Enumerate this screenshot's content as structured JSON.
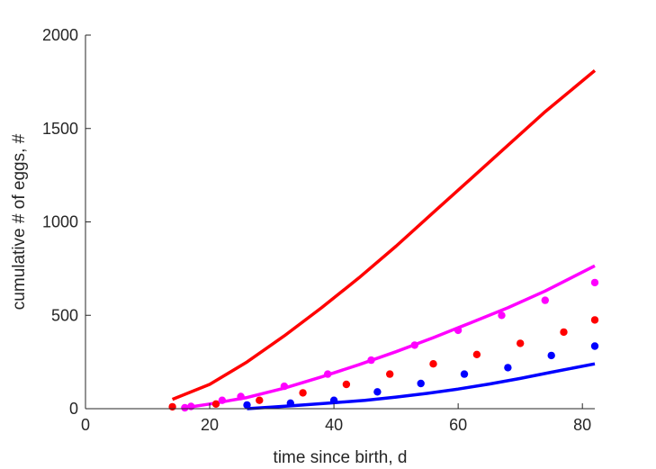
{
  "chart_data": {
    "type": "line",
    "title": "",
    "xlabel": "time since birth, d",
    "ylabel": "cumulative # of eggs, #",
    "xlim": [
      0,
      82
    ],
    "ylim": [
      0,
      2000
    ],
    "xticks": [
      0,
      20,
      40,
      60,
      80
    ],
    "yticks": [
      0,
      500,
      1000,
      1500,
      2000
    ],
    "grid": false,
    "legend": "none",
    "series": [
      {
        "kind": "line",
        "color": "#ff0000",
        "x": [
          14,
          20,
          26,
          32,
          38,
          44,
          50,
          56,
          62,
          68,
          74,
          82
        ],
        "y": [
          50,
          130,
          250,
          390,
          540,
          700,
          870,
          1050,
          1230,
          1410,
          1590,
          1810
        ]
      },
      {
        "kind": "line",
        "color": "#ff00ff",
        "x": [
          16,
          20,
          26,
          32,
          38,
          44,
          50,
          56,
          62,
          68,
          74,
          82
        ],
        "y": [
          5,
          25,
          60,
          110,
          170,
          235,
          305,
          380,
          460,
          540,
          630,
          765
        ]
      },
      {
        "kind": "line",
        "color": "#0000ff",
        "x": [
          26,
          30,
          35,
          40,
          45,
          50,
          55,
          60,
          65,
          70,
          75,
          82
        ],
        "y": [
          0,
          8,
          20,
          32,
          45,
          62,
          82,
          105,
          132,
          162,
          195,
          240
        ]
      },
      {
        "kind": "scatter",
        "color": "#ff0000",
        "x": [
          14,
          21,
          28,
          35,
          42,
          49,
          56,
          63,
          70,
          77,
          82
        ],
        "y": [
          10,
          25,
          45,
          85,
          130,
          185,
          240,
          290,
          350,
          410,
          475
        ]
      },
      {
        "kind": "scatter",
        "color": "#ff00ff",
        "x": [
          16,
          17,
          22,
          25,
          32,
          39,
          46,
          53,
          60,
          67,
          74,
          82
        ],
        "y": [
          5,
          12,
          45,
          65,
          120,
          185,
          260,
          340,
          420,
          500,
          580,
          675
        ]
      },
      {
        "kind": "scatter",
        "color": "#0000ff",
        "x": [
          26,
          33,
          40,
          47,
          54,
          61,
          68,
          75,
          82
        ],
        "y": [
          20,
          30,
          45,
          90,
          135,
          185,
          220,
          285,
          335
        ]
      }
    ]
  }
}
